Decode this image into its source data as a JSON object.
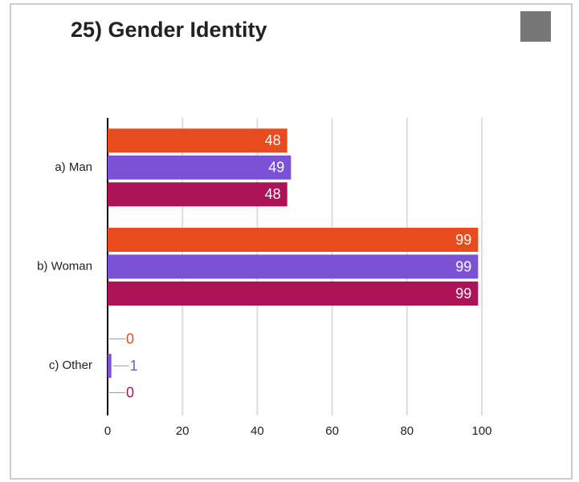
{
  "chart_data": {
    "type": "bar",
    "orientation": "horizontal",
    "title": "25) Gender Identity",
    "categories": [
      "a) Man",
      "b) Woman",
      "c) Other"
    ],
    "series": [
      {
        "color": "#e84c1e",
        "values": [
          48,
          99,
          0
        ]
      },
      {
        "color": "#7b52d6",
        "values": [
          49,
          99,
          1
        ]
      },
      {
        "color": "#ad1457",
        "values": [
          48,
          99,
          0
        ]
      }
    ],
    "xlim": [
      0,
      100
    ],
    "xticks": [
      0,
      20,
      40,
      60,
      80,
      100
    ],
    "grid": true
  }
}
